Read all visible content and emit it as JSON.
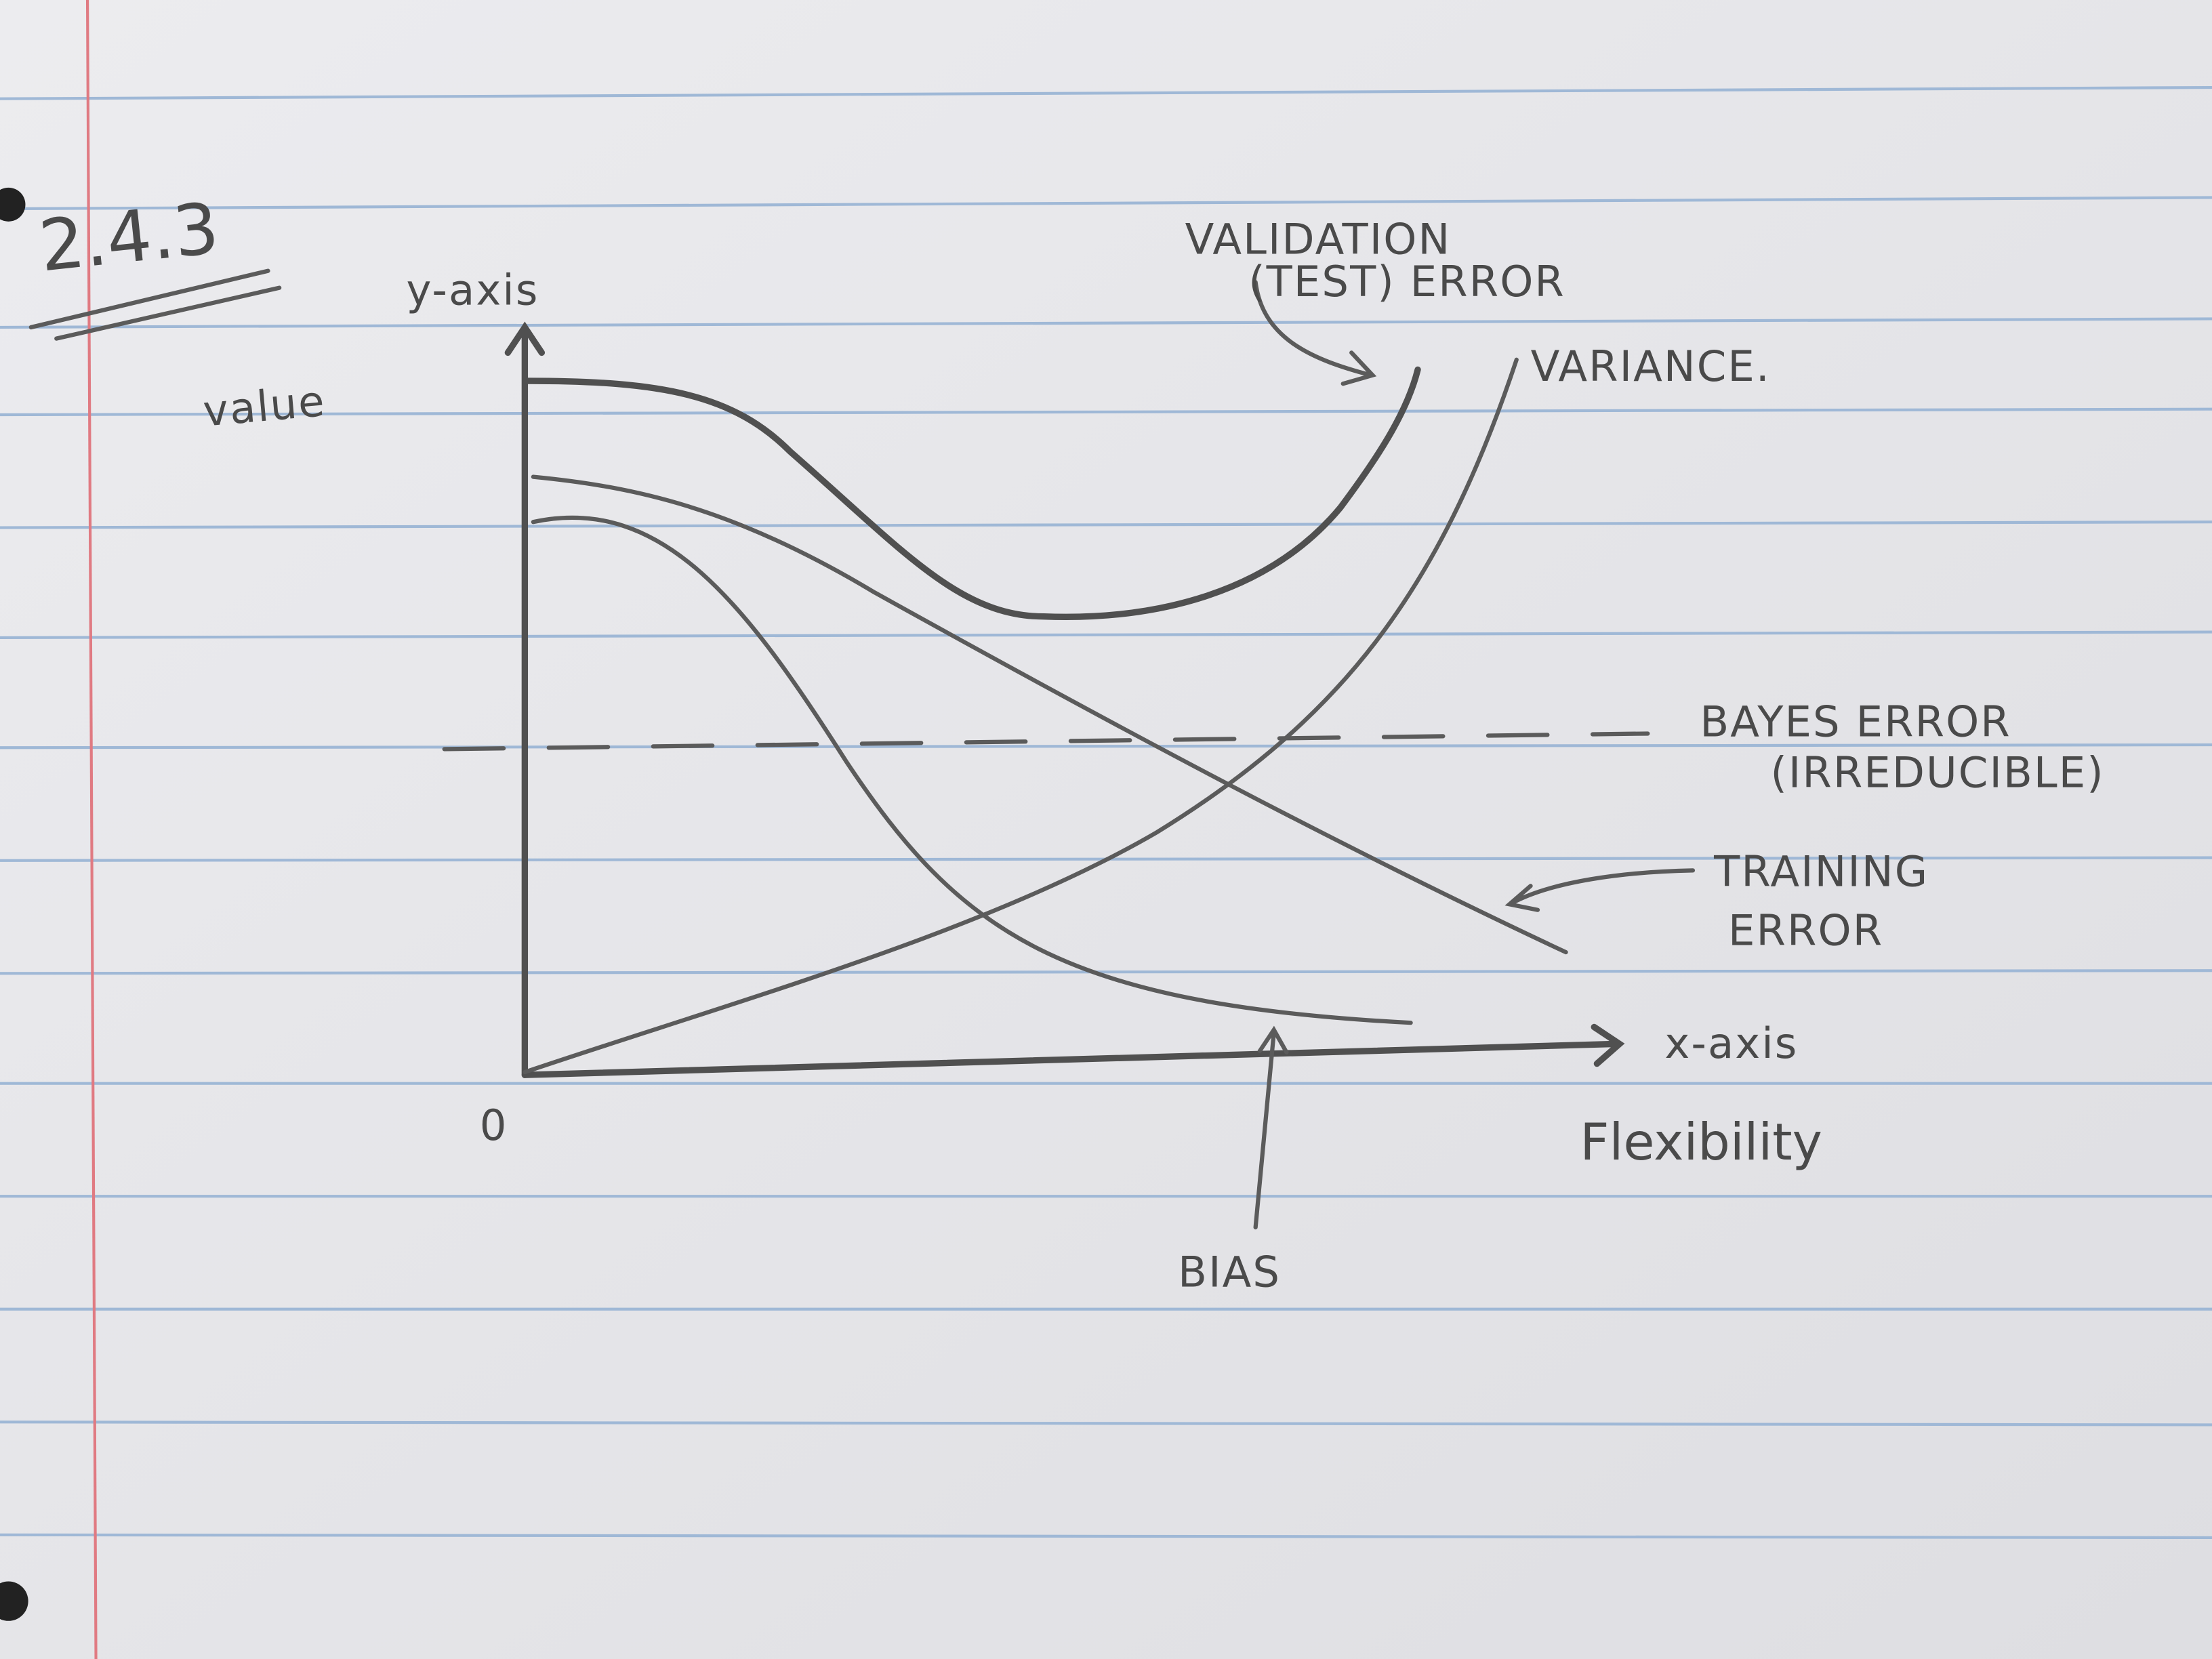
{
  "heading": "2.4.3",
  "axes": {
    "y_label": "y-axis",
    "y_note": "value",
    "x_label": "x-axis",
    "x_note": "Flexibility",
    "origin": "0"
  },
  "labels": {
    "validation": [
      "VALIDATION",
      "(TEST) ERROR"
    ],
    "variance": "VARIANCE.",
    "bayes": [
      "BAYES ERROR",
      "(IRREDUCIBLE)"
    ],
    "training": [
      "TRAINING",
      "ERROR"
    ],
    "bias": "BIAS"
  }
}
